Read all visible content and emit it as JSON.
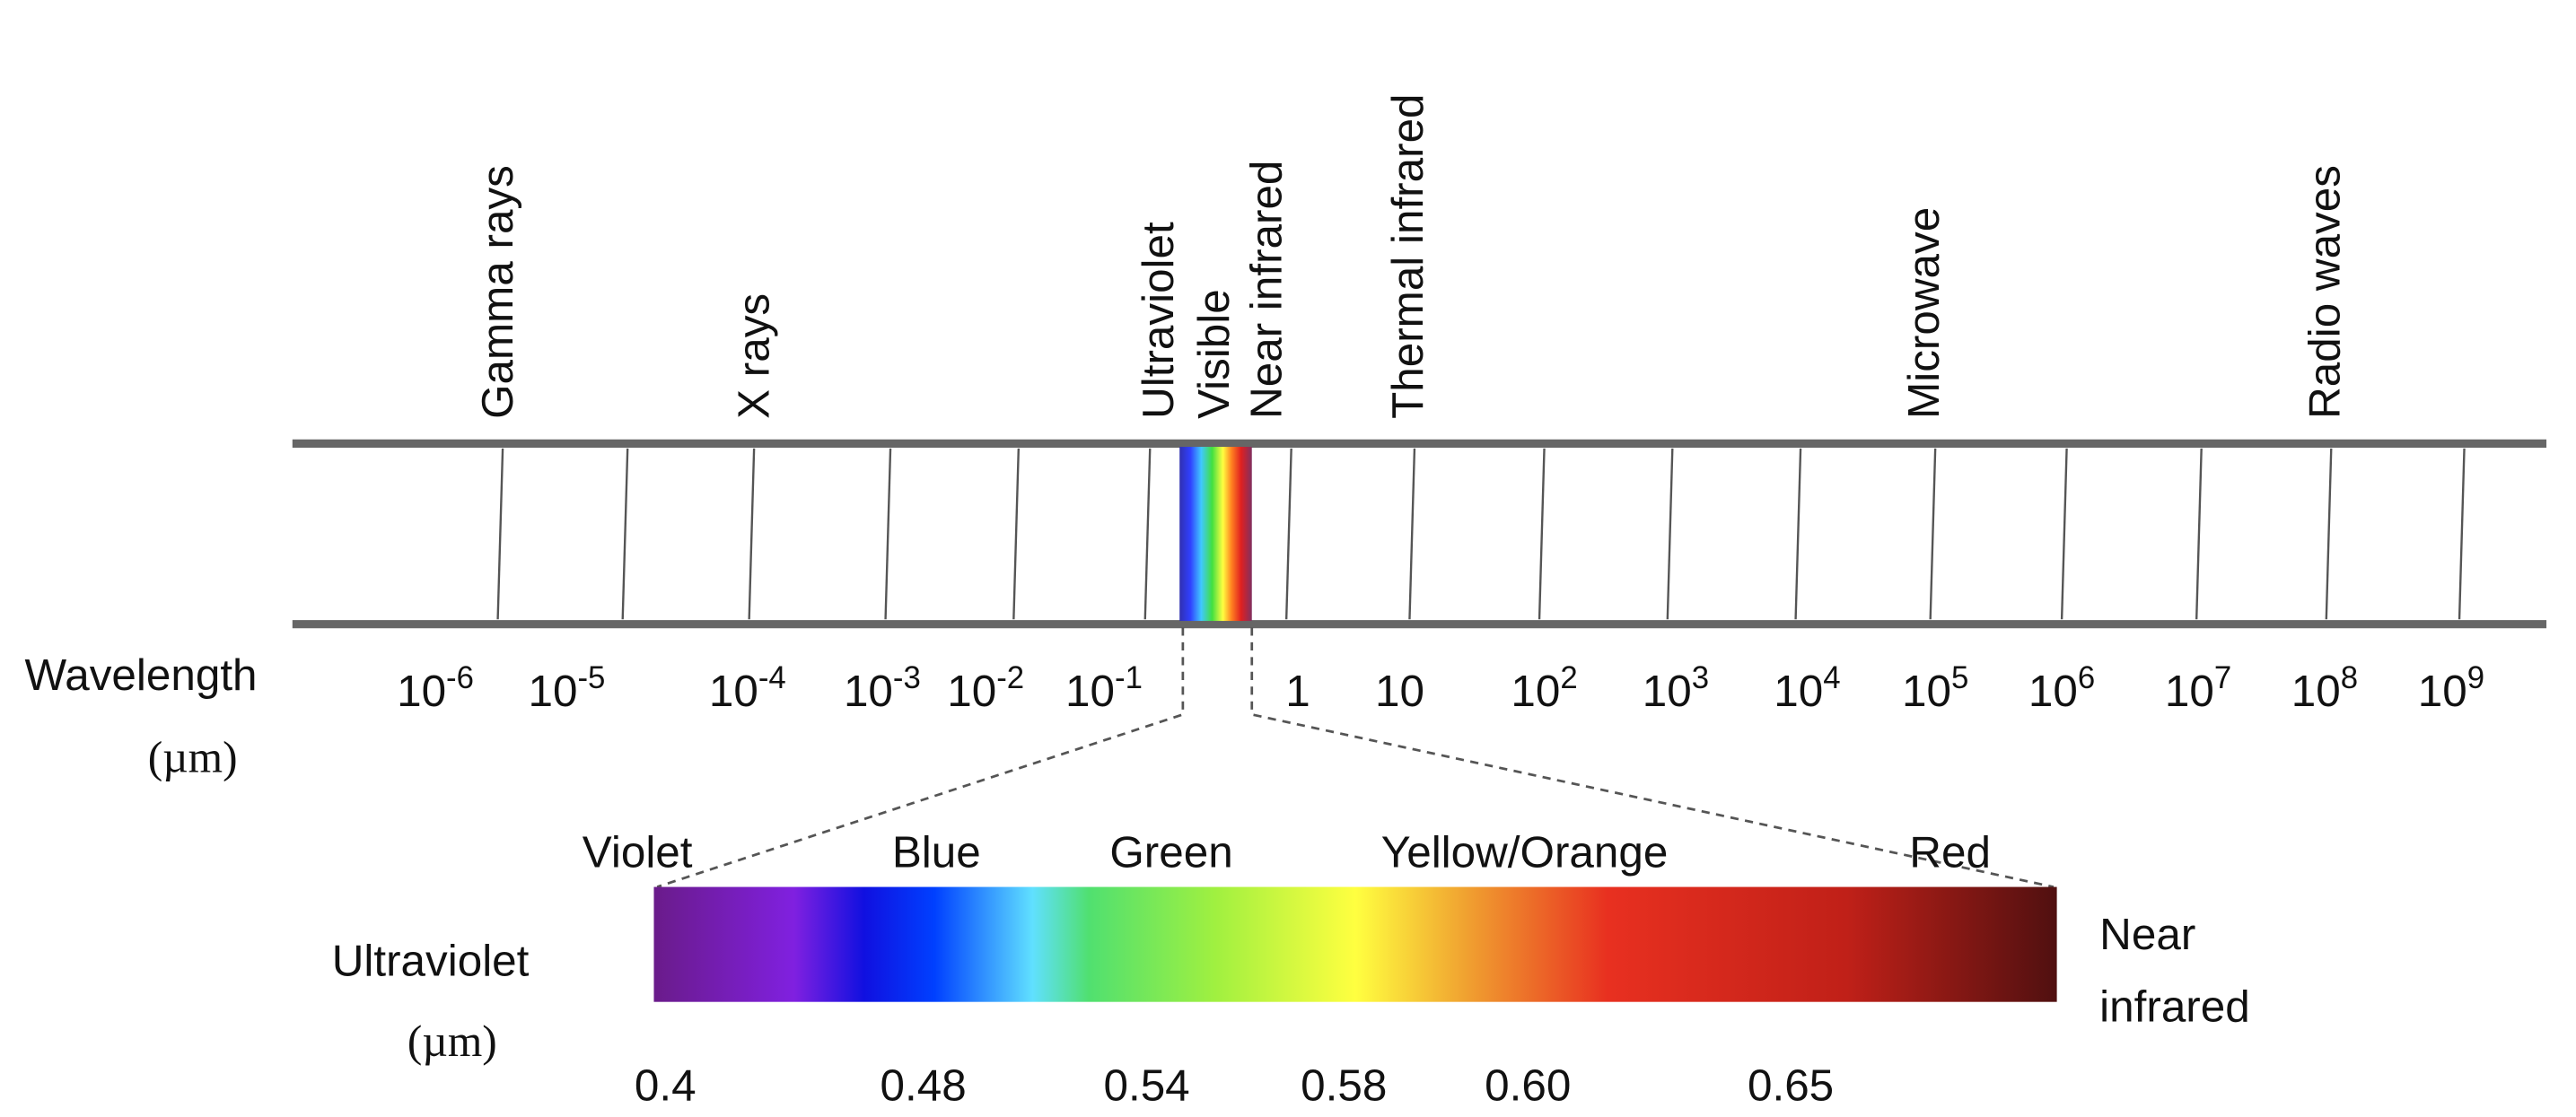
{
  "spectrum": {
    "bands": [
      "Gamma rays",
      "X rays",
      "Ultraviolet",
      "Visible",
      "Near infrared",
      "Thermal infrared",
      "Microwave",
      "Radio waves"
    ],
    "axis_label": "Wavelength",
    "unit": "(µm)",
    "ticks": [
      {
        "base": "10",
        "exponent": "-6"
      },
      {
        "base": "10",
        "exponent": "-5"
      },
      {
        "base": "10",
        "exponent": "-4"
      },
      {
        "base": "10",
        "exponent": "-3"
      },
      {
        "base": "10",
        "exponent": "-2"
      },
      {
        "base": "10",
        "exponent": "-1"
      },
      {
        "base": "1"
      },
      {
        "base": "10"
      },
      {
        "base": "10",
        "exponent": "2"
      },
      {
        "base": "10",
        "exponent": "3"
      },
      {
        "base": "10",
        "exponent": "4"
      },
      {
        "base": "10",
        "exponent": "5"
      },
      {
        "base": "10",
        "exponent": "6"
      },
      {
        "base": "10",
        "exponent": "7"
      },
      {
        "base": "10",
        "exponent": "8"
      },
      {
        "base": "10",
        "exponent": "9"
      }
    ]
  },
  "visible": {
    "colors": [
      "Violet",
      "Blue",
      "Green",
      "Yellow/Orange",
      "Red"
    ],
    "left_label": "Ultraviolet",
    "unit": "(µm)",
    "right_label": [
      "Near",
      "infrared"
    ],
    "ticks": [
      "0.4",
      "0.48",
      "0.54",
      "0.58",
      "0.60",
      "0.65"
    ]
  }
}
